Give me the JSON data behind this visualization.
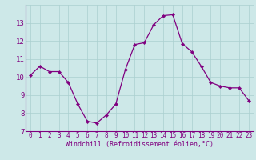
{
  "x": [
    0,
    1,
    2,
    3,
    4,
    5,
    6,
    7,
    8,
    9,
    10,
    11,
    12,
    13,
    14,
    15,
    16,
    17,
    18,
    19,
    20,
    21,
    22,
    23
  ],
  "y": [
    10.1,
    10.6,
    10.3,
    10.3,
    9.7,
    8.5,
    7.55,
    7.45,
    7.9,
    8.5,
    10.4,
    11.8,
    11.9,
    12.9,
    13.4,
    13.45,
    11.85,
    11.4,
    10.6,
    9.7,
    9.5,
    9.4,
    9.4,
    8.7
  ],
  "line_color": "#800080",
  "marker": "D",
  "marker_size": 2.2,
  "bg_color": "#cde8e8",
  "grid_color": "#aacfcf",
  "xlabel": "Windchill (Refroidissement éolien,°C)",
  "xlabel_color": "#800080",
  "tick_color": "#800080",
  "axis_color": "#800080",
  "ylim": [
    7,
    14
  ],
  "xlim": [
    -0.5,
    23.5
  ],
  "yticks": [
    7,
    8,
    9,
    10,
    11,
    12,
    13
  ],
  "xticks": [
    0,
    1,
    2,
    3,
    4,
    5,
    6,
    7,
    8,
    9,
    10,
    11,
    12,
    13,
    14,
    15,
    16,
    17,
    18,
    19,
    20,
    21,
    22,
    23
  ],
  "tick_fontsize": 5.5,
  "xlabel_fontsize": 6.0,
  "ytick_fontsize": 6.5
}
